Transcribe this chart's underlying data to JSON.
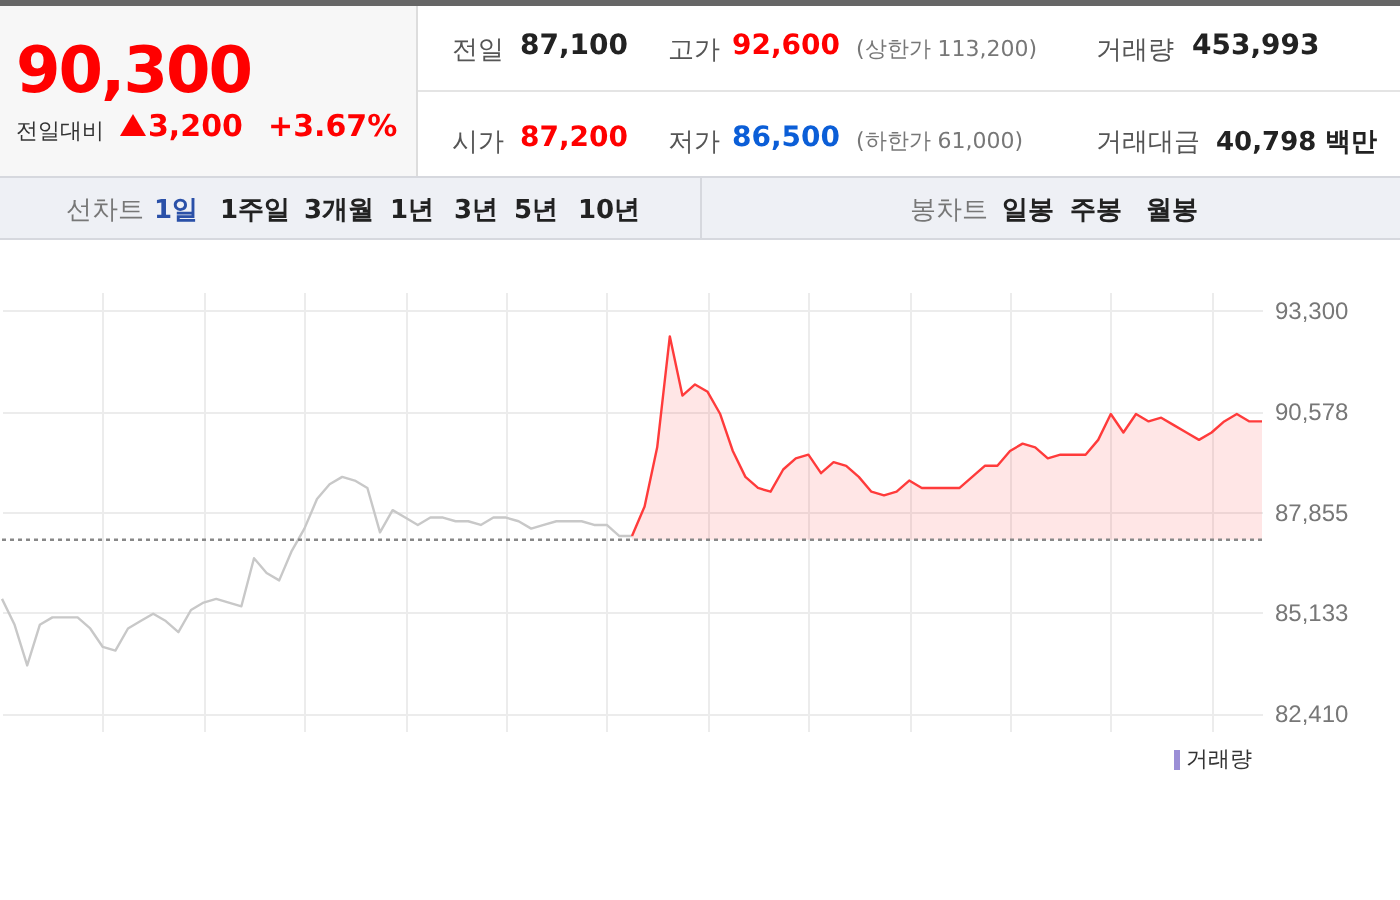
{
  "chart_data": [
    {
      "type": "line",
      "annotations": [
        "90,300",
        "전일대비",
        "3,200",
        "+3.67%",
        "전일",
        "87,100",
        "고가",
        "92,600",
        "(상한가 113,200)",
        "거래량",
        "453,993",
        "시가",
        "87,200",
        "저가",
        "86,500",
        "(하한가 61,000)",
        "거래대금",
        "40,798 백만",
        "선차트",
        "1일",
        "1주일",
        "3개월",
        "1년",
        "3년",
        "5년",
        "10년",
        "봉차트",
        "일봉",
        "주봉",
        "월봉"
      ],
      "categories": [
        null,
        null,
        null,
        null,
        null,
        null,
        null,
        null,
        null,
        null,
        null,
        null,
        null,
        null,
        null,
        null,
        null,
        null,
        null,
        null,
        null,
        null,
        null,
        null,
        null,
        null,
        null,
        null,
        null,
        null,
        null,
        null,
        null,
        null,
        null,
        null,
        null,
        null,
        null,
        null,
        null,
        null,
        null,
        null,
        null,
        null,
        null,
        null,
        null,
        null,
        null,
        null,
        null,
        null,
        null,
        null,
        null,
        null,
        null,
        null,
        null,
        null,
        null,
        null,
        null,
        null,
        null,
        null,
        null,
        null,
        null,
        null,
        null,
        null,
        null,
        null,
        null,
        null,
        null,
        null,
        null,
        null,
        null,
        null,
        null,
        null,
        null,
        null,
        null,
        null,
        null,
        null,
        null,
        null,
        null,
        null,
        null,
        null,
        null,
        null,
        null
      ],
      "series": [
        {
          "color": "#c8c8c8",
          "values": [
            85500,
            84800,
            83700,
            84800,
            85000,
            85000,
            85000,
            84700,
            84200,
            84100,
            84700,
            84900,
            85100,
            84900,
            84600,
            85200,
            85400,
            85500,
            85400,
            85300,
            86600,
            86200,
            86000,
            86800,
            87400,
            88200,
            88600,
            88800,
            88700,
            88500,
            87300,
            87900,
            87700,
            87500,
            87700,
            87700,
            87600,
            87600,
            87500,
            87700,
            87700,
            87600,
            87400,
            87500,
            87600,
            87600,
            87600,
            87500,
            87500,
            87200,
            87200,
            null,
            null,
            null,
            null,
            null,
            null,
            null,
            null,
            null,
            null,
            null,
            null,
            null,
            null,
            null,
            null,
            null,
            null,
            null,
            null,
            null,
            null,
            null,
            null,
            null,
            null,
            null,
            null,
            null,
            null,
            null,
            null,
            null,
            null,
            null,
            null,
            null,
            null,
            null,
            null,
            null,
            null,
            null,
            null,
            null,
            null,
            null,
            null,
            null,
            null
          ]
        },
        {
          "type": "area",
          "color": "#ff3b3b",
          "values": [
            null,
            null,
            null,
            null,
            null,
            null,
            null,
            null,
            null,
            null,
            null,
            null,
            null,
            null,
            null,
            null,
            null,
            null,
            null,
            null,
            null,
            null,
            null,
            null,
            null,
            null,
            null,
            null,
            null,
            null,
            null,
            null,
            null,
            null,
            null,
            null,
            null,
            null,
            null,
            null,
            null,
            null,
            null,
            null,
            null,
            null,
            null,
            null,
            null,
            null,
            87200,
            88000,
            89600,
            92600,
            91000,
            91300,
            91100,
            90500,
            89500,
            88800,
            88500,
            88400,
            89000,
            89300,
            89400,
            88900,
            89200,
            89100,
            88800,
            88400,
            88300,
            88400,
            88700,
            88500,
            88500,
            88500,
            88500,
            88800,
            89100,
            89100,
            89500,
            89700,
            89600,
            89300,
            89400,
            89400,
            89400,
            89800,
            90500,
            90000,
            90500,
            90300,
            90400,
            90200,
            90000,
            89800,
            90000,
            90300,
            90500,
            90300,
            90300
          ]
        }
      ],
      "ylim": [
        81900,
        93800
      ],
      "yticks": [
        {
          "value": 82410,
          "label": "82,410"
        },
        {
          "value": 85133,
          "label": "85,133"
        },
        {
          "value": 87855,
          "label": "87,855"
        },
        {
          "value": 90578,
          "label": "90,578"
        },
        {
          "value": 93300,
          "label": "93,300"
        }
      ],
      "grid": true,
      "tick_labels": "y",
      "ref_lines": [
        {
          "axis": "y",
          "value": 87100,
          "color": "#888888",
          "line_style": "dotted"
        }
      ]
    },
    {
      "type": "other",
      "annotations": [
        "거래량"
      ]
    }
  ]
}
